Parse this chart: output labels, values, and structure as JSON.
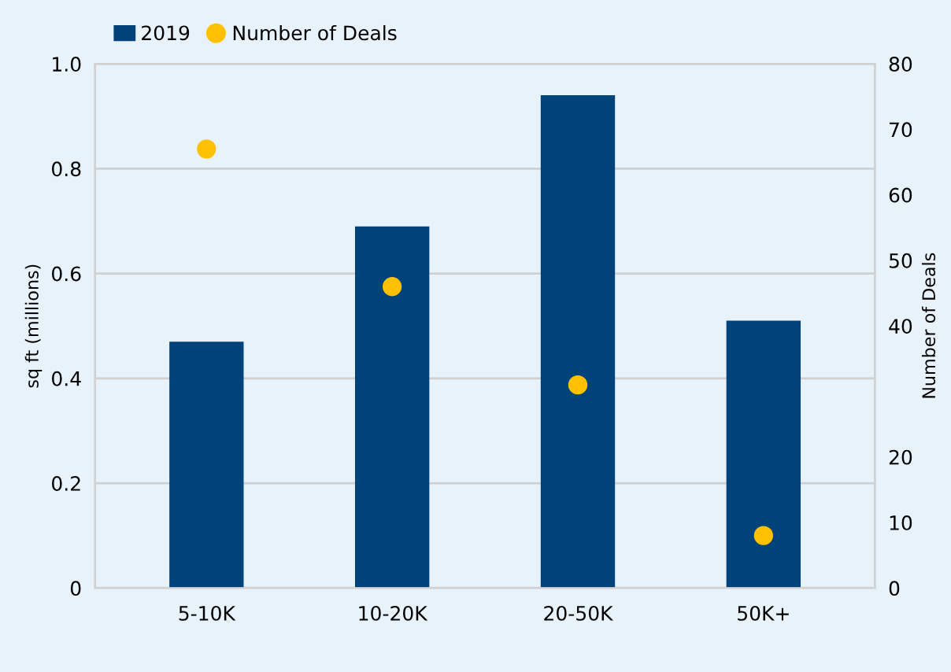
{
  "chart_data": {
    "type": "bar",
    "categories": [
      "5-10K",
      "10-20K",
      "20-50K",
      "50K+"
    ],
    "series": [
      {
        "name": "2019",
        "type": "bar",
        "color": "#00437a",
        "values": [
          0.47,
          0.69,
          0.94,
          0.51
        ]
      },
      {
        "name": "Number of Deals",
        "type": "scatter",
        "axis": "y2",
        "color": "#ffc000",
        "values": [
          67,
          46,
          31,
          8
        ]
      }
    ],
    "ylabel": "sq ft (millions)",
    "y2label": "Number of Deals",
    "ylim": [
      0,
      1.0
    ],
    "yticks": [
      0,
      0.2,
      0.4,
      0.6,
      0.8,
      {
        "value": 1.0,
        "label": "1.0"
      }
    ],
    "y2lim": [
      0,
      80
    ],
    "y2ticks": [
      0,
      10,
      20,
      40,
      50,
      60,
      70,
      80
    ],
    "grid": "y",
    "legend": "top left",
    "marker": "circle"
  }
}
